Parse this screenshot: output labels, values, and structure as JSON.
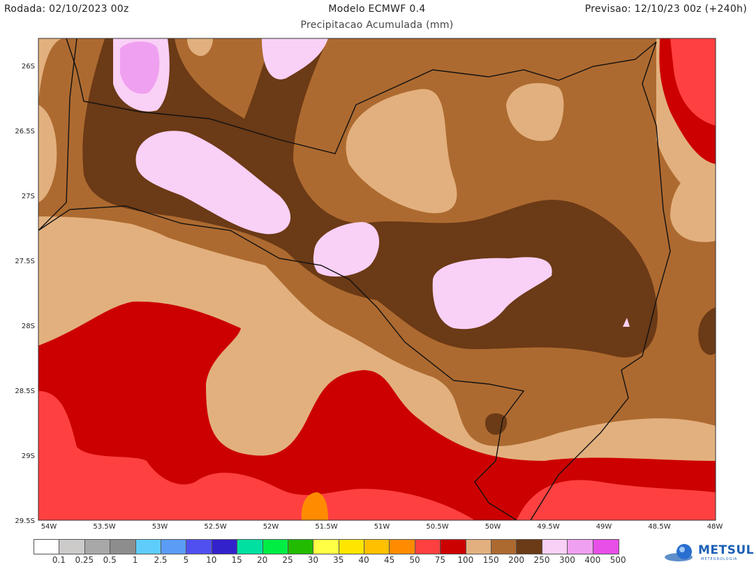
{
  "header": {
    "run": "Rodada: 02/10/2023 00z",
    "model": "Modelo ECMWF 0.4",
    "subtitle": "Precipitacao Acumulada (mm)",
    "forecast": "Previsao: 12/10/23 00z (+240h)"
  },
  "axes": {
    "lat_labels": [
      "26S",
      "26.5S",
      "27S",
      "27.5S",
      "28S",
      "28.5S",
      "29S",
      "29.5S"
    ],
    "lon_labels": [
      "54W",
      "53.5W",
      "53W",
      "52.5W",
      "52W",
      "51.5W",
      "51W",
      "50.5W",
      "50W",
      "49.5W",
      "49W",
      "48.5W",
      "48W"
    ]
  },
  "colorbar": {
    "colors": [
      "#ffffff",
      "#cdcaca",
      "#a9a8a8",
      "#8e8d8d",
      "#5fcdfb",
      "#5a9cf6",
      "#5050f0",
      "#3322cc",
      "#00e0a0",
      "#00ee44",
      "#22bb00",
      "#ffff44",
      "#ffe600",
      "#ffc000",
      "#ff8c00",
      "#ff4040",
      "#cc0000",
      "#e2b07e",
      "#ad6a30",
      "#6b3a16",
      "#f9d0f6",
      "#f0a0f0",
      "#e84ee8",
      "#880088"
    ],
    "labels": [
      "0.1",
      "0.25",
      "0.5",
      "1",
      "2.5",
      "5",
      "10",
      "15",
      "20",
      "25",
      "30",
      "35",
      "40",
      "45",
      "50",
      "75",
      "100",
      "150",
      "200",
      "250",
      "300",
      "400",
      "500"
    ]
  },
  "logo": {
    "name": "METSUL",
    "tagline": "METEOROLOGIA"
  }
}
